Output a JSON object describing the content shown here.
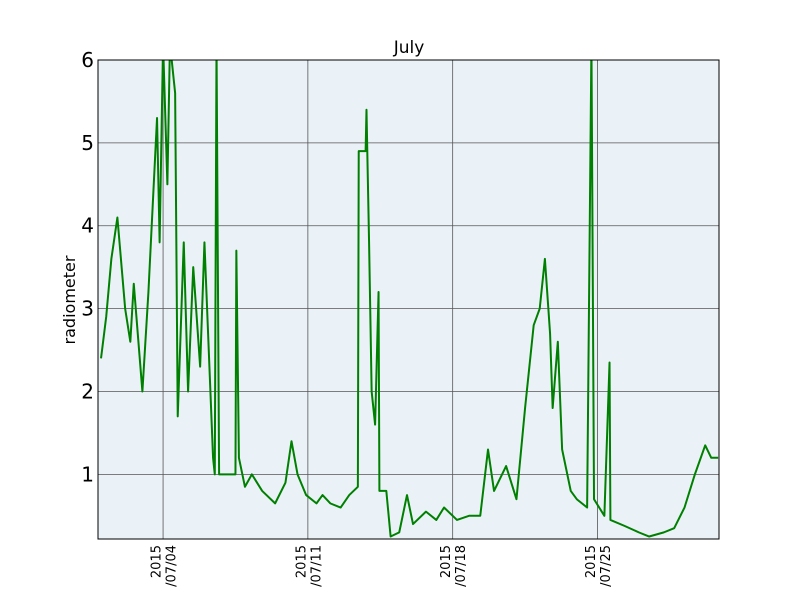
{
  "chart_data": {
    "type": "line",
    "title": "July",
    "y_label": "radiometer",
    "x": [
      "2015-07-01T00:00",
      "2015-07-01T06:00",
      "2015-07-01T12:00",
      "2015-07-01T19:00",
      "2015-07-02T04:00",
      "2015-07-02T10:00",
      "2015-07-02T14:00",
      "2015-07-03T00:00",
      "2015-07-03T07:00",
      "2015-07-03T17:00",
      "2015-07-03T20:00",
      "2015-07-04T00:00",
      "2015-07-04T05:00",
      "2015-07-04T08:00",
      "2015-07-04T14:00",
      "2015-07-04T17:00",
      "2015-07-05T00:00",
      "2015-07-05T05:00",
      "2015-07-05T11:00",
      "2015-07-05T19:00",
      "2015-07-06T00:00",
      "2015-07-06T05:00",
      "2015-07-06T10:00",
      "2015-07-06T12:00",
      "2015-07-06T14:00",
      "2015-07-06T17:00",
      "2015-07-07T12:00",
      "2015-07-07T13:00",
      "2015-07-07T16:00",
      "2015-07-07T23:00",
      "2015-07-08T07:00",
      "2015-07-08T19:00",
      "2015-07-09T10:00",
      "2015-07-09T22:00",
      "2015-07-10T05:00",
      "2015-07-10T12:00",
      "2015-07-10T22:00",
      "2015-07-11T10:00",
      "2015-07-11T17:00",
      "2015-07-12T02:00",
      "2015-07-12T14:00",
      "2015-07-13T00:00",
      "2015-07-13T10:00",
      "2015-07-13T11:00",
      "2015-07-13T19:00",
      "2015-07-13T20:00",
      "2015-07-13T23:00",
      "2015-07-14T02:00",
      "2015-07-14T06:00",
      "2015-07-14T10:00",
      "2015-07-14T11:00",
      "2015-07-14T19:00",
      "2015-07-15T00:00",
      "2015-07-15T10:00",
      "2015-07-15T19:00",
      "2015-07-16T02:00",
      "2015-07-16T17:00",
      "2015-07-17T05:00",
      "2015-07-17T14:00",
      "2015-07-18T05:00",
      "2015-07-18T19:00",
      "2015-07-19T08:00",
      "2015-07-19T17:00",
      "2015-07-20T00:00",
      "2015-07-20T14:00",
      "2015-07-21T02:00",
      "2015-07-21T12:00",
      "2015-07-21T22:00",
      "2015-07-22T05:00",
      "2015-07-22T11:00",
      "2015-07-22T17:00",
      "2015-07-22T20:00",
      "2015-07-23T02:00",
      "2015-07-23T07:00",
      "2015-07-23T17:00",
      "2015-07-24T00:00",
      "2015-07-24T12:00",
      "2015-07-24T17:00",
      "2015-07-24T20:00",
      "2015-07-25T08:00",
      "2015-07-25T14:00",
      "2015-07-25T15:00",
      "2015-07-26T07:00",
      "2015-07-27T00:00",
      "2015-07-27T12:00",
      "2015-07-28T05:00",
      "2015-07-28T17:00",
      "2015-07-29T05:00",
      "2015-07-29T17:00",
      "2015-07-30T05:00",
      "2015-07-30T12:00",
      "2015-07-30T20:00"
    ],
    "series": [
      {
        "name": "radiometer",
        "color": "#008000",
        "values": [
          2.4,
          2.9,
          3.6,
          4.1,
          3.0,
          2.6,
          3.3,
          2.0,
          3.2,
          5.3,
          3.8,
          6.2,
          4.5,
          6.2,
          5.6,
          1.7,
          3.8,
          2.0,
          3.5,
          2.3,
          3.8,
          2.5,
          1.2,
          1.0,
          6.2,
          1.0,
          1.0,
          3.7,
          1.2,
          0.85,
          1.0,
          0.8,
          0.65,
          0.9,
          1.4,
          1.0,
          0.75,
          0.65,
          0.75,
          0.65,
          0.6,
          0.75,
          0.85,
          4.9,
          4.9,
          5.4,
          3.8,
          2.0,
          1.6,
          3.2,
          0.8,
          0.8,
          0.25,
          0.3,
          0.75,
          0.4,
          0.55,
          0.45,
          0.6,
          0.45,
          0.5,
          0.5,
          1.3,
          0.8,
          1.1,
          0.7,
          1.8,
          2.8,
          3.0,
          3.6,
          2.7,
          1.8,
          2.6,
          1.3,
          0.8,
          0.7,
          0.6,
          6.2,
          0.7,
          0.5,
          2.35,
          0.45,
          0.38,
          0.3,
          0.25,
          0.3,
          0.35,
          0.6,
          1.0,
          1.35,
          1.2,
          1.2
        ]
      }
    ],
    "xlim": [
      "2015-06-30T20:30",
      "2015-07-30T21:00"
    ],
    "xticks": [
      {
        "value": "2015-07-04T00:00",
        "label": "2015\n/07/04"
      },
      {
        "value": "2015-07-11T00:00",
        "label": "2015\n/07/11"
      },
      {
        "value": "2015-07-18T00:00",
        "label": "2015\n/07/18"
      },
      {
        "value": "2015-07-25T00:00",
        "label": "2015\n/07/25"
      }
    ],
    "ylim": [
      0.22,
      6
    ],
    "yticks": [
      1,
      2,
      3,
      4,
      5,
      6
    ],
    "grid": true,
    "background": "#eaf2f8"
  }
}
